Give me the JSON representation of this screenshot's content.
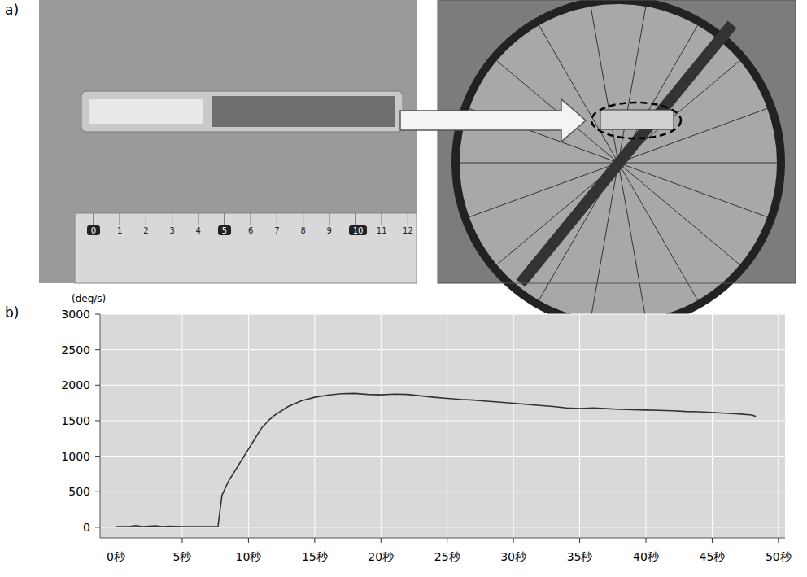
{
  "panels": {
    "a": {
      "label": "a)",
      "ruler_labels": [
        0,
        1,
        2,
        3,
        4,
        5,
        6,
        7,
        8,
        9,
        10,
        11,
        12
      ]
    },
    "b": {
      "label": "b)"
    }
  },
  "chart_data": {
    "type": "line",
    "y_label": "(deg/s)",
    "color": "#333333",
    "grid": true,
    "x": [
      0,
      1,
      1.5,
      2,
      3,
      3.5,
      4,
      5,
      6,
      7,
      7.7,
      8,
      8.5,
      9,
      9.5,
      10,
      10.5,
      11,
      11.5,
      12,
      13,
      14,
      15,
      16,
      17,
      18,
      19,
      20,
      21,
      22,
      23,
      24,
      25,
      26,
      27,
      28,
      29,
      30,
      31,
      32,
      33,
      34,
      35,
      36,
      37,
      38,
      39,
      40,
      41,
      42,
      43,
      44,
      45,
      46,
      47,
      48,
      48.3
    ],
    "values": [
      10,
      10,
      25,
      10,
      20,
      10,
      15,
      10,
      10,
      10,
      10,
      450,
      650,
      800,
      950,
      1100,
      1250,
      1400,
      1500,
      1580,
      1700,
      1780,
      1830,
      1860,
      1880,
      1885,
      1870,
      1865,
      1875,
      1870,
      1850,
      1830,
      1815,
      1800,
      1790,
      1775,
      1760,
      1745,
      1730,
      1715,
      1700,
      1680,
      1670,
      1680,
      1670,
      1660,
      1655,
      1650,
      1645,
      1640,
      1630,
      1625,
      1615,
      1605,
      1595,
      1580,
      1560
    ],
    "xlim": [
      -1.2,
      50.5
    ],
    "ylim": [
      -150,
      3000
    ],
    "xticks": [
      {
        "value": 0,
        "label": "0秒"
      },
      {
        "value": 5,
        "label": "5秒"
      },
      {
        "value": 10,
        "label": "10秒"
      },
      {
        "value": 15,
        "label": "15秒"
      },
      {
        "value": 20,
        "label": "20秒"
      },
      {
        "value": 25,
        "label": "25秒"
      },
      {
        "value": 30,
        "label": "30秒"
      },
      {
        "value": 35,
        "label": "35秒"
      },
      {
        "value": 40,
        "label": "40秒"
      },
      {
        "value": 45,
        "label": "45秒"
      },
      {
        "value": 50,
        "label": "50秒"
      }
    ],
    "yticks": [
      0,
      500,
      1000,
      1500,
      2000,
      2500,
      3000
    ]
  }
}
